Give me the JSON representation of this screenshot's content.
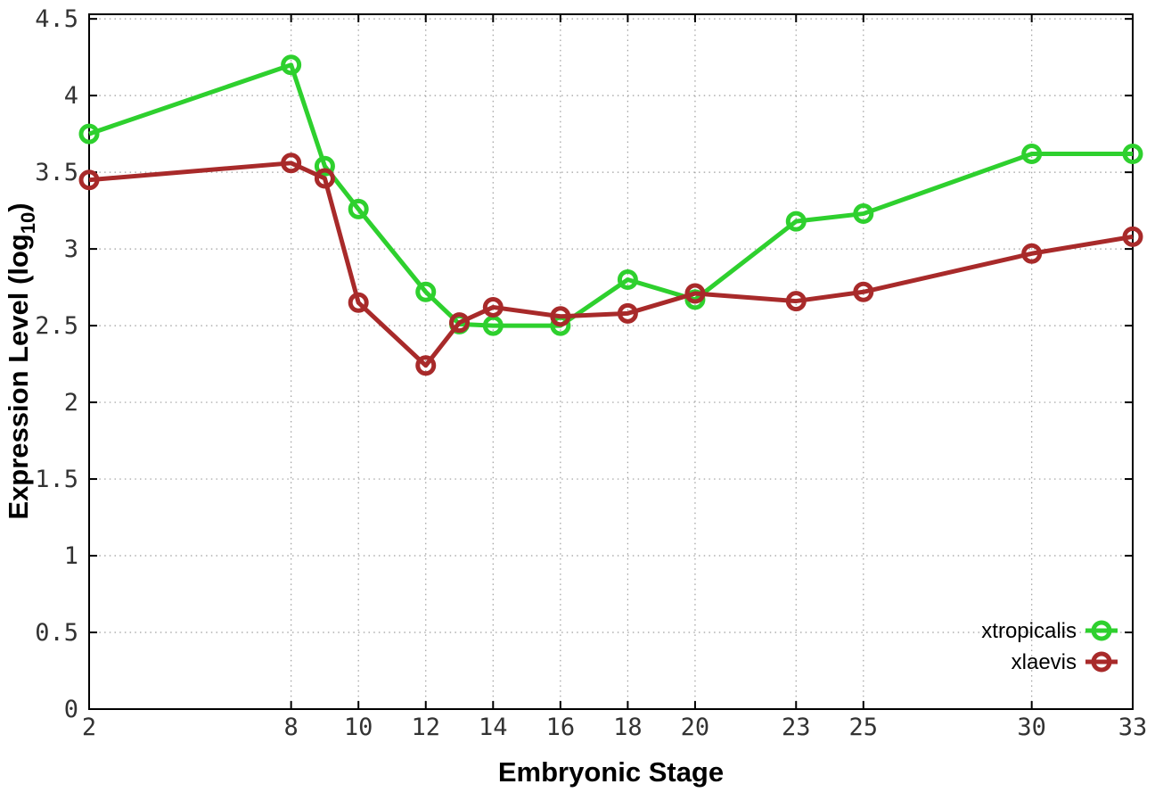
{
  "page": {
    "background": "#ffffff"
  },
  "chart_data": {
    "type": "line",
    "title": "",
    "xlabel": "Embryonic Stage",
    "ylabel": {
      "prefix": "Expression Level (log",
      "subscript": "10",
      "suffix": ")"
    },
    "x_axis": {
      "ticks": [
        2,
        8,
        10,
        12,
        14,
        16,
        18,
        20,
        23,
        25,
        30,
        33
      ],
      "labels": [
        "2",
        "8",
        "10",
        "12",
        "14",
        "16",
        "18",
        "20",
        "23",
        "25",
        "30",
        "33"
      ],
      "range": [
        2,
        33
      ]
    },
    "y_axis": {
      "ticks": [
        0,
        0.5,
        1,
        1.5,
        2,
        2.5,
        3,
        3.5,
        4,
        4.5
      ],
      "labels": [
        "0",
        "0.5",
        "1",
        "1.5",
        "2",
        "2.5",
        "3",
        "3.5",
        "4",
        "4.5"
      ],
      "range": [
        0,
        4.53
      ]
    },
    "grid": true,
    "legend": {
      "position": "bottom-right"
    },
    "x": [
      2,
      8,
      9,
      10,
      12,
      13,
      14,
      16,
      18,
      20,
      23,
      25,
      30,
      33
    ],
    "series": [
      {
        "name": "xtropicalis",
        "color": "#2ed02e",
        "marker": "open-circle",
        "values": [
          3.75,
          4.2,
          3.54,
          3.26,
          2.72,
          2.51,
          2.5,
          2.5,
          2.8,
          2.67,
          3.18,
          3.23,
          3.62,
          3.62
        ]
      },
      {
        "name": "xlaevis",
        "color": "#a82a2a",
        "marker": "open-circle",
        "values": [
          3.45,
          3.56,
          3.46,
          2.65,
          2.24,
          2.52,
          2.62,
          2.56,
          2.58,
          2.71,
          2.66,
          2.72,
          2.97,
          3.08
        ]
      }
    ],
    "styles": {
      "axis_color": "#000000",
      "grid_color": "#9e9e9e",
      "tick_label_color": "#333333",
      "title_color": "#000000",
      "background": "#ffffff"
    }
  }
}
